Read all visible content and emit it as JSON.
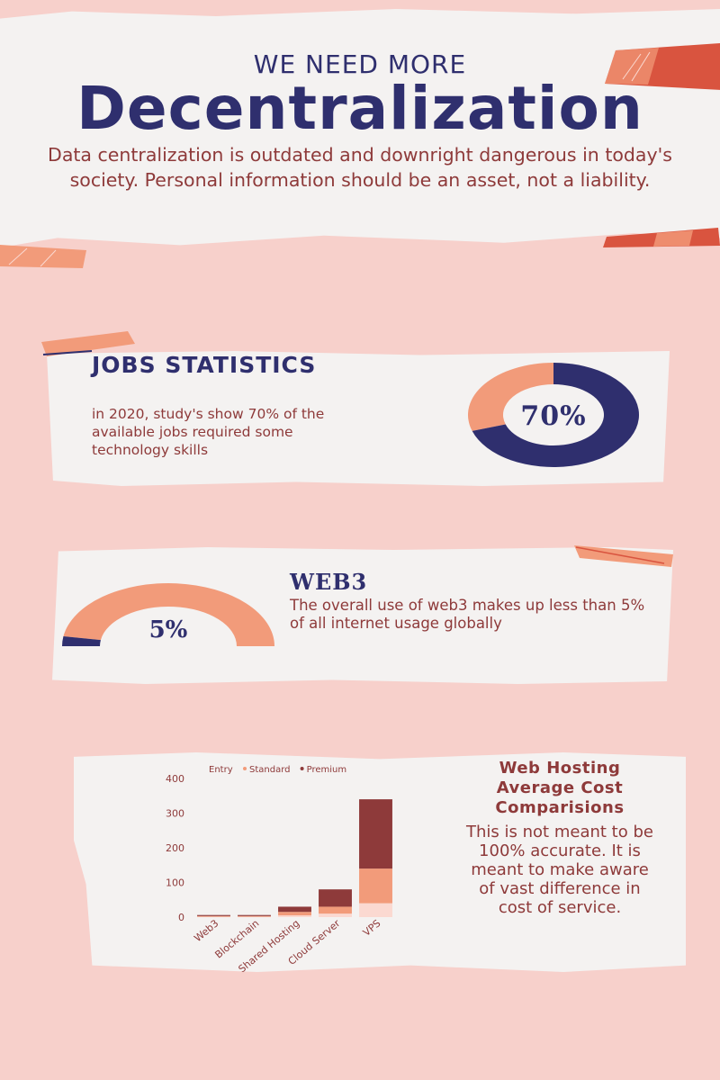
{
  "header": {
    "eyebrow": "WE NEED MORE",
    "title": "Decentralization",
    "subtitle": "Data centralization is outdated and downright dangerous in today's society. Personal information should be an asset, not a liability."
  },
  "jobs": {
    "title": "JOBS STATISTICS",
    "text": "in 2020, study's show 70% of the available jobs required some technology skills",
    "donut_label": "70%",
    "donut_fraction": 0.7
  },
  "web3": {
    "title": "WEB3",
    "text": "The overall use of web3 makes up less than 5% of all internet usage globally",
    "gauge_label": "5%",
    "gauge_fraction": 0.05
  },
  "hosting": {
    "title": "Web Hosting Average Cost Comparisions",
    "note": "This is not meant to be 100% accurate. It is meant to make aware of vast difference in cost of service."
  },
  "colors": {
    "navy": "#2f2f6e",
    "peach": "#f29b7a",
    "maroon": "#8e3a3a",
    "light_pink": "#fbd9d1",
    "background": "#f7d0cb",
    "paper": "#f4f2f1"
  },
  "chart_data": {
    "type": "bar",
    "stacked": true,
    "categories": [
      "Web3",
      "Blockchain",
      "Shared Hosting",
      "Cloud Server",
      "VPS"
    ],
    "series": [
      {
        "name": "Entry",
        "values": [
          1,
          1,
          5,
          10,
          40
        ],
        "color": "#fbd9d1"
      },
      {
        "name": "Standard",
        "values": [
          2,
          2,
          10,
          20,
          100
        ],
        "color": "#f29b7a"
      },
      {
        "name": "Premium",
        "values": [
          3,
          3,
          15,
          50,
          200
        ],
        "color": "#8e3a3a"
      }
    ],
    "ylim": [
      0,
      400
    ],
    "yticks": [
      0,
      100,
      200,
      300,
      400
    ],
    "legend": "top",
    "grid": false
  }
}
